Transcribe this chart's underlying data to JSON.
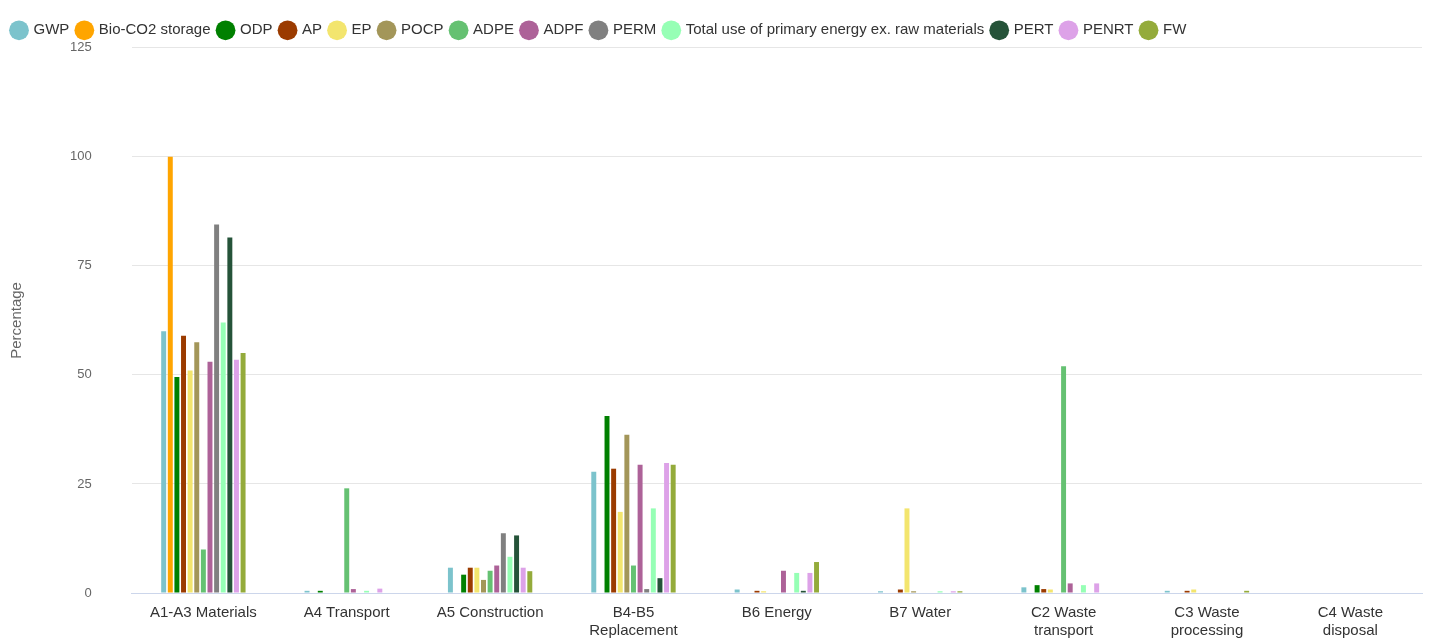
{
  "chart_data": {
    "type": "bar",
    "ylabel": "Percentage",
    "categories": [
      "A1-A3 Materials",
      "A4 Transport",
      "A5 Construction",
      "B4-B5 Replacement",
      "B6 Energy",
      "B7 Water",
      "C2 Waste transport",
      "C3 Waste processing",
      "C4 Waste disposal"
    ],
    "series": [
      {
        "name": "GWP",
        "color": "#7cc3cc",
        "values": [
          60,
          0.5,
          5.8,
          27.8,
          0.8,
          0.4,
          1.3,
          0.5,
          null
        ]
      },
      {
        "name": "Bio-CO2 storage",
        "color": "#ffa500",
        "values": [
          100,
          null,
          null,
          null,
          null,
          null,
          null,
          null,
          null
        ]
      },
      {
        "name": "ODP",
        "color": "#008000",
        "values": [
          49.5,
          0.5,
          4.2,
          40.6,
          null,
          null,
          1.8,
          null,
          null
        ]
      },
      {
        "name": "AP",
        "color": "#9b3b00",
        "values": [
          59,
          null,
          5.8,
          28.5,
          0.5,
          0.8,
          0.9,
          0.5,
          null
        ]
      },
      {
        "name": "EP",
        "color": "#f3e56e",
        "values": [
          51,
          null,
          5.8,
          18.6,
          0.4,
          19.4,
          0.8,
          0.8,
          null
        ]
      },
      {
        "name": "POCP",
        "color": "#a39659",
        "values": [
          57.5,
          null,
          3,
          36.3,
          null,
          0.4,
          null,
          null,
          null
        ]
      },
      {
        "name": "ADPE",
        "color": "#65c172",
        "values": [
          10,
          24,
          5.1,
          6.3,
          null,
          null,
          52,
          null,
          null
        ]
      },
      {
        "name": "ADPF",
        "color": "#ad6298",
        "values": [
          53,
          0.9,
          6.3,
          29.4,
          5.1,
          null,
          2.2,
          null,
          null
        ]
      },
      {
        "name": "PERM",
        "color": "#808080",
        "values": [
          84.5,
          null,
          13.7,
          0.9,
          null,
          null,
          null,
          null,
          null
        ]
      },
      {
        "name": "Total use of primary energy ex. raw materials",
        "color": "#96ffb5",
        "values": [
          62,
          0.5,
          8.3,
          19.4,
          4.6,
          0.4,
          1.8,
          null,
          null
        ]
      },
      {
        "name": "PERT",
        "color": "#255339",
        "values": [
          81.5,
          null,
          13.2,
          3.4,
          0.5,
          null,
          null,
          null,
          null
        ]
      },
      {
        "name": "PENRT",
        "color": "#dda2e8",
        "values": [
          53.5,
          1,
          5.8,
          29.8,
          4.6,
          0.4,
          2.2,
          null,
          null
        ]
      },
      {
        "name": "FW",
        "color": "#94ab3b",
        "values": [
          55,
          null,
          5,
          29.4,
          7.1,
          0.4,
          null,
          0.5,
          null
        ]
      }
    ],
    "ylim": [
      0,
      125
    ],
    "yticks": [
      0,
      25,
      50,
      75,
      100,
      125
    ],
    "grid": "y",
    "legend": "top left"
  }
}
